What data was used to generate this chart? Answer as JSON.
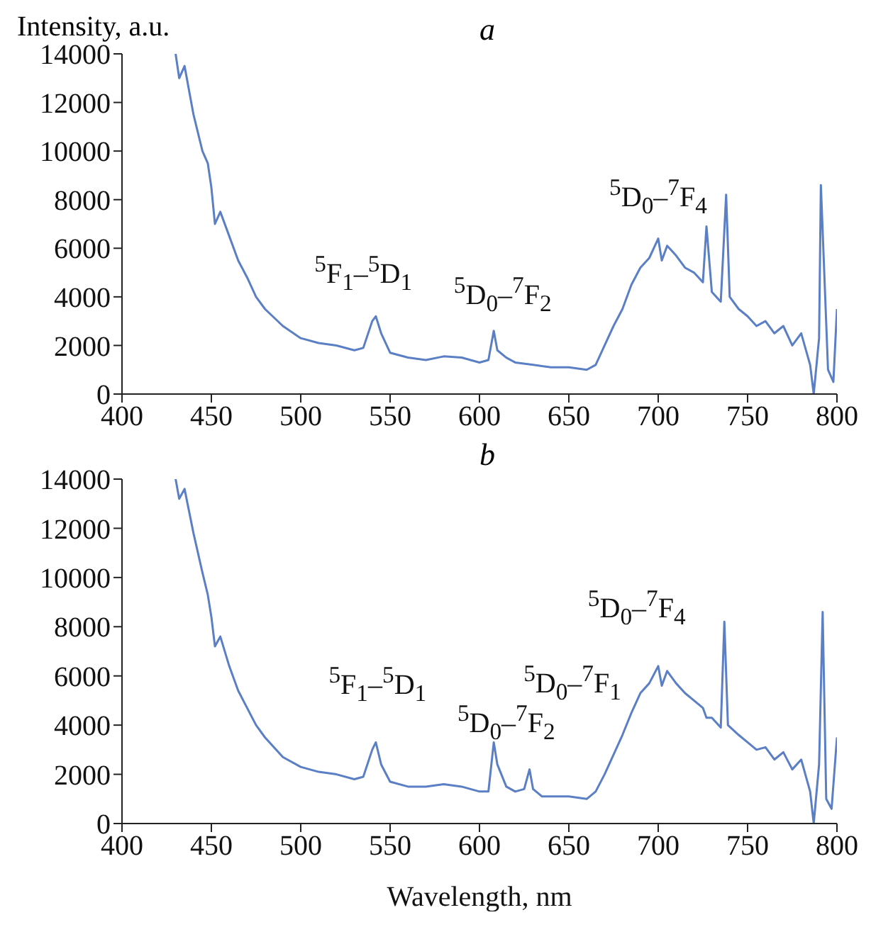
{
  "chart_data": [
    {
      "type": "line",
      "title": "a",
      "ylabel": "Intensity, a.u.",
      "xlim": [
        400,
        800
      ],
      "xticks": [
        400,
        450,
        500,
        550,
        600,
        650,
        700,
        750,
        800
      ],
      "ylim": [
        0,
        14000
      ],
      "yticks": [
        0,
        2000,
        4000,
        6000,
        8000,
        10000,
        12000,
        14000
      ],
      "grid": false,
      "legend": false,
      "series": [
        {
          "color": "#5b7fc4",
          "x": [
            430,
            432,
            435,
            440,
            445,
            448,
            450,
            452,
            455,
            460,
            465,
            470,
            475,
            480,
            490,
            500,
            510,
            520,
            530,
            535,
            540,
            542,
            545,
            550,
            560,
            570,
            580,
            590,
            600,
            605,
            608,
            610,
            615,
            620,
            630,
            640,
            650,
            660,
            665,
            670,
            675,
            680,
            685,
            690,
            695,
            700,
            702,
            705,
            710,
            715,
            720,
            725,
            727,
            730,
            735,
            738,
            740,
            745,
            750,
            755,
            760,
            765,
            770,
            775,
            780,
            785,
            787,
            790,
            791,
            795,
            798,
            800
          ],
          "values": [
            14000,
            13000,
            13500,
            11500,
            10000,
            9500,
            8500,
            7000,
            7500,
            6500,
            5500,
            4800,
            4000,
            3500,
            2800,
            2300,
            2100,
            2000,
            1800,
            1900,
            3000,
            3200,
            2500,
            1700,
            1500,
            1400,
            1550,
            1500,
            1300,
            1400,
            2600,
            1800,
            1500,
            1300,
            1200,
            1100,
            1100,
            1000,
            1200,
            2000,
            2800,
            3500,
            4500,
            5200,
            5600,
            6400,
            5500,
            6100,
            5700,
            5200,
            5000,
            4600,
            6900,
            4200,
            3800,
            8200,
            4000,
            3500,
            3200,
            2800,
            3000,
            2500,
            2800,
            2000,
            2500,
            1200,
            0,
            2300,
            8600,
            1000,
            500,
            3500
          ]
        }
      ],
      "annotations": [
        "$^{5}$F$_{1}$–$^{5}$D$_{1}$",
        "$^{5}$D$_{0}$–$^{7}$F$_{2}$",
        "$^{5}$D$_{0}$–$^{7}$F$_{4}$"
      ]
    },
    {
      "type": "line",
      "title": "b",
      "xlabel": "Wavelength, nm",
      "xlim": [
        400,
        800
      ],
      "xticks": [
        400,
        450,
        500,
        550,
        600,
        650,
        700,
        750,
        800
      ],
      "ylim": [
        0,
        14000
      ],
      "yticks": [
        0,
        2000,
        4000,
        6000,
        8000,
        10000,
        12000,
        14000
      ],
      "grid": false,
      "legend": false,
      "series": [
        {
          "color": "#5b7fc4",
          "x": [
            430,
            432,
            435,
            440,
            445,
            448,
            450,
            452,
            455,
            460,
            465,
            470,
            475,
            480,
            490,
            500,
            510,
            520,
            530,
            535,
            540,
            542,
            545,
            550,
            560,
            570,
            580,
            590,
            600,
            605,
            608,
            610,
            615,
            620,
            625,
            628,
            630,
            635,
            640,
            650,
            660,
            665,
            670,
            675,
            680,
            685,
            690,
            695,
            700,
            702,
            705,
            710,
            715,
            720,
            725,
            727,
            730,
            735,
            737,
            739,
            745,
            750,
            755,
            760,
            765,
            770,
            775,
            780,
            785,
            787,
            790,
            792,
            794,
            797,
            800
          ],
          "values": [
            14000,
            13200,
            13600,
            11800,
            10200,
            9300,
            8400,
            7200,
            7600,
            6400,
            5400,
            4700,
            4000,
            3500,
            2700,
            2300,
            2100,
            2000,
            1800,
            1900,
            3000,
            3300,
            2400,
            1700,
            1500,
            1500,
            1600,
            1500,
            1300,
            1300,
            3300,
            2400,
            1500,
            1300,
            1400,
            2200,
            1400,
            1100,
            1100,
            1100,
            1000,
            1300,
            2000,
            2800,
            3600,
            4500,
            5300,
            5700,
            6400,
            5600,
            6200,
            5700,
            5300,
            5000,
            4700,
            4300,
            4300,
            3900,
            8200,
            4000,
            3600,
            3300,
            3000,
            3100,
            2600,
            2900,
            2200,
            2600,
            1300,
            0,
            2400,
            8600,
            1000,
            600,
            3500
          ]
        }
      ],
      "annotations": [
        "$^{5}$F$_{1}$–$^{5}$D$_{1}$",
        "$^{5}$D$_{0}$–$^{7}$F$_{2}$",
        "$^{5}$D$_{0}$–$^{7}$F$_{1}$",
        "$^{5}$D$_{0}$–$^{7}$F$_{4}$"
      ]
    }
  ]
}
